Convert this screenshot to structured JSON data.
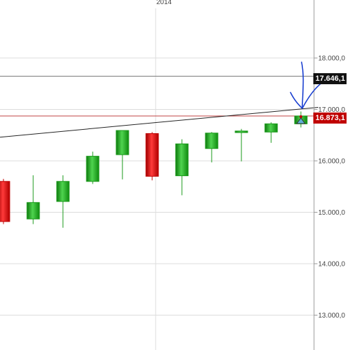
{
  "chart_data": {
    "type": "candlestick",
    "title": "",
    "x_labels": [
      {
        "label": "2014",
        "index": 5
      }
    ],
    "y_ticks": [
      {
        "value": 18000,
        "label": "18.000,0"
      },
      {
        "value": 17000,
        "label": "17.000,0"
      },
      {
        "value": 16000,
        "label": "16.000,0"
      },
      {
        "value": 15000,
        "label": "15.000,0"
      },
      {
        "value": 14000,
        "label": "14.000,0"
      },
      {
        "value": 13000,
        "label": "13.000,0"
      }
    ],
    "ylim": [
      12300,
      19000
    ],
    "grid": true,
    "candles": [
      {
        "open": 15600,
        "high": 15650,
        "low": 14770,
        "close": 14820
      },
      {
        "open": 14870,
        "high": 15720,
        "low": 14770,
        "close": 15190
      },
      {
        "open": 15210,
        "high": 15720,
        "low": 14700,
        "close": 15600
      },
      {
        "open": 15600,
        "high": 16180,
        "low": 15550,
        "close": 16090
      },
      {
        "open": 16120,
        "high": 16580,
        "low": 15640,
        "close": 16590
      },
      {
        "open": 16530,
        "high": 16560,
        "low": 15620,
        "close": 15700
      },
      {
        "open": 15710,
        "high": 16420,
        "low": 15330,
        "close": 16330
      },
      {
        "open": 16240,
        "high": 16560,
        "low": 15970,
        "close": 16540
      },
      {
        "open": 16550,
        "high": 16620,
        "low": 15990,
        "close": 16580
      },
      {
        "open": 16560,
        "high": 16750,
        "low": 16350,
        "close": 16720
      },
      {
        "open": 16720,
        "high": 16960,
        "low": 16650,
        "close": 16873
      }
    ],
    "reference_lines": {
      "upper": 17646.1,
      "last": 16873.1
    },
    "price_tags": {
      "upper": "17.646,1",
      "last": "16.873,1"
    },
    "trendline": {
      "start_value": 16460,
      "end_value": 17040
    }
  },
  "colors": {
    "bull": "#1a9a1a",
    "bull_highlight": "#4fd44f",
    "bear": "#c00000",
    "bear_highlight": "#ff4a4a",
    "grid": "#dcdcdc",
    "axis": "#999999",
    "trendline": "#222222",
    "last_line": "#c04040",
    "annotation": "#1a3fd0",
    "marker": "#5fb0d8"
  }
}
